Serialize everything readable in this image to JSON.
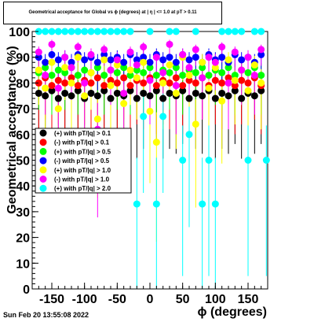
{
  "title": "Geometrical acceptance for Global vs ϕ (degrees) at | η | <= 1.0 at pT > 0.11",
  "footer": "Sun Feb 20 13:55:08 2022",
  "chart_data": {
    "type": "scatter",
    "xlabel": "ϕ (degrees)",
    "ylabel": "Geometrical acceptance (%)",
    "xlim": [
      -180,
      180
    ],
    "ylim": [
      0,
      100
    ],
    "x_ticks": [
      -150,
      -100,
      -50,
      0,
      50,
      100,
      150
    ],
    "y_ticks": [
      0,
      10,
      20,
      30,
      40,
      50,
      60,
      70,
      80,
      90,
      100
    ],
    "grid": false,
    "legend_position": "left-center",
    "series": [
      {
        "name": "(+) with pT/|q| > 0.1",
        "color": "#000000",
        "points": [
          [
            -170,
            76
          ],
          [
            -160,
            75
          ],
          [
            -150,
            77
          ],
          [
            -140,
            74
          ],
          [
            -130,
            76
          ],
          [
            -120,
            75
          ],
          [
            -110,
            77
          ],
          [
            -100,
            74
          ],
          [
            -90,
            76
          ],
          [
            -80,
            75
          ],
          [
            -70,
            77
          ],
          [
            -60,
            74
          ],
          [
            -50,
            76
          ],
          [
            -40,
            75
          ],
          [
            -30,
            77
          ],
          [
            -20,
            74
          ],
          [
            -10,
            76
          ],
          [
            0,
            75
          ],
          [
            10,
            77
          ],
          [
            20,
            74
          ],
          [
            30,
            76
          ],
          [
            40,
            75
          ],
          [
            50,
            77
          ],
          [
            60,
            74
          ],
          [
            70,
            76
          ],
          [
            80,
            75
          ],
          [
            90,
            77
          ],
          [
            100,
            74
          ],
          [
            110,
            76
          ],
          [
            120,
            75
          ],
          [
            130,
            77
          ],
          [
            140,
            74
          ],
          [
            150,
            76
          ],
          [
            160,
            75
          ],
          [
            170,
            77
          ]
        ]
      },
      {
        "name": "(-) with pT/|q| > 0.1",
        "color": "#ff0000",
        "points": [
          [
            -170,
            80
          ],
          [
            -160,
            82
          ],
          [
            -150,
            79
          ],
          [
            -140,
            81
          ],
          [
            -130,
            80
          ],
          [
            -120,
            82
          ],
          [
            -110,
            79
          ],
          [
            -100,
            81
          ],
          [
            -90,
            80
          ],
          [
            -80,
            82
          ],
          [
            -70,
            79
          ],
          [
            -60,
            81
          ],
          [
            -50,
            80
          ],
          [
            -40,
            82
          ],
          [
            -30,
            79
          ],
          [
            -20,
            81
          ],
          [
            -10,
            80
          ],
          [
            0,
            82
          ],
          [
            10,
            79
          ],
          [
            20,
            81
          ],
          [
            30,
            80
          ],
          [
            40,
            82
          ],
          [
            50,
            79
          ],
          [
            60,
            81
          ],
          [
            70,
            80
          ],
          [
            80,
            82
          ],
          [
            90,
            79
          ],
          [
            100,
            81
          ],
          [
            110,
            80
          ],
          [
            120,
            82
          ],
          [
            130,
            79
          ],
          [
            140,
            81
          ],
          [
            150,
            80
          ],
          [
            160,
            82
          ],
          [
            170,
            79
          ]
        ]
      },
      {
        "name": "(+) with pT/|q| > 0.5",
        "color": "#00ff00",
        "points": [
          [
            -170,
            84
          ],
          [
            -160,
            86
          ],
          [
            -150,
            83
          ],
          [
            -140,
            85
          ],
          [
            -130,
            84
          ],
          [
            -120,
            86
          ],
          [
            -110,
            83
          ],
          [
            -100,
            85
          ],
          [
            -90,
            84
          ],
          [
            -80,
            86
          ],
          [
            -70,
            83
          ],
          [
            -60,
            85
          ],
          [
            -50,
            84
          ],
          [
            -40,
            86
          ],
          [
            -30,
            83
          ],
          [
            -20,
            85
          ],
          [
            -10,
            84
          ],
          [
            0,
            86
          ],
          [
            10,
            83
          ],
          [
            20,
            85
          ],
          [
            30,
            84
          ],
          [
            40,
            86
          ],
          [
            50,
            83
          ],
          [
            60,
            85
          ],
          [
            70,
            84
          ],
          [
            80,
            86
          ],
          [
            90,
            83
          ],
          [
            100,
            85
          ],
          [
            110,
            84
          ],
          [
            120,
            86
          ],
          [
            130,
            83
          ],
          [
            140,
            85
          ],
          [
            150,
            84
          ],
          [
            160,
            86
          ],
          [
            170,
            83
          ]
        ]
      },
      {
        "name": "(-) with pT/|q| > 0.5",
        "color": "#0000ff",
        "points": [
          [
            -170,
            90
          ],
          [
            -160,
            88
          ],
          [
            -150,
            91
          ],
          [
            -140,
            89
          ],
          [
            -130,
            90
          ],
          [
            -120,
            88
          ],
          [
            -110,
            91
          ],
          [
            -100,
            89
          ],
          [
            -90,
            90
          ],
          [
            -80,
            88
          ],
          [
            -70,
            91
          ],
          [
            -60,
            89
          ],
          [
            -50,
            90
          ],
          [
            -40,
            88
          ],
          [
            -30,
            91
          ],
          [
            -20,
            89
          ],
          [
            -10,
            90
          ],
          [
            0,
            88
          ],
          [
            10,
            91
          ],
          [
            20,
            89
          ],
          [
            30,
            90
          ],
          [
            40,
            88
          ],
          [
            50,
            91
          ],
          [
            60,
            89
          ],
          [
            70,
            90
          ],
          [
            80,
            88
          ],
          [
            90,
            91
          ],
          [
            100,
            89
          ],
          [
            110,
            90
          ],
          [
            120,
            88
          ],
          [
            130,
            91
          ],
          [
            140,
            89
          ],
          [
            150,
            90
          ],
          [
            160,
            88
          ],
          [
            170,
            91
          ]
        ]
      },
      {
        "name": "(+) with pT/|q| > 1.0",
        "color": "#ffff00",
        "points": [
          [
            -170,
            85
          ],
          [
            -160,
            78
          ],
          [
            -150,
            88
          ],
          [
            -140,
            70
          ],
          [
            -130,
            86
          ],
          [
            -120,
            80
          ],
          [
            -110,
            90
          ],
          [
            -100,
            75
          ],
          [
            -90,
            84
          ],
          [
            -80,
            66
          ],
          [
            -70,
            89
          ],
          [
            -60,
            79
          ],
          [
            -50,
            87
          ],
          [
            -40,
            72
          ],
          [
            -30,
            85
          ],
          [
            -20,
            82
          ],
          [
            -10,
            88
          ],
          [
            0,
            69
          ],
          [
            10,
            57
          ],
          [
            20,
            80
          ],
          [
            30,
            87
          ],
          [
            40,
            76
          ],
          [
            50,
            90
          ],
          [
            60,
            83
          ],
          [
            70,
            64
          ],
          [
            80,
            88
          ],
          [
            90,
            78
          ],
          [
            100,
            86
          ],
          [
            110,
            73
          ],
          [
            120,
            89
          ],
          [
            130,
            81
          ],
          [
            140,
            85
          ],
          [
            150,
            77
          ],
          [
            160,
            87
          ],
          [
            170,
            80
          ]
        ]
      },
      {
        "name": "(-) with pT/|q| > 1.0",
        "color": "#ff00ff",
        "points": [
          [
            -170,
            92
          ],
          [
            -160,
            83
          ],
          [
            -150,
            95
          ],
          [
            -140,
            78
          ],
          [
            -130,
            90
          ],
          [
            -120,
            86
          ],
          [
            -110,
            94
          ],
          [
            -100,
            80
          ],
          [
            -90,
            91
          ],
          [
            -80,
            62
          ],
          [
            -70,
            93
          ],
          [
            -60,
            85
          ],
          [
            -50,
            89
          ],
          [
            -40,
            76
          ],
          [
            -30,
            92
          ],
          [
            -20,
            87
          ],
          [
            -10,
            94
          ],
          [
            0,
            81
          ],
          [
            10,
            90
          ],
          [
            20,
            84
          ],
          [
            30,
            95
          ],
          [
            40,
            79
          ],
          [
            50,
            91
          ],
          [
            60,
            86
          ],
          [
            70,
            93
          ],
          [
            80,
            82
          ],
          [
            90,
            90
          ],
          [
            100,
            88
          ],
          [
            110,
            94
          ],
          [
            120,
            80
          ],
          [
            130,
            92
          ],
          [
            140,
            85
          ],
          [
            150,
            90
          ],
          [
            160,
            83
          ],
          [
            170,
            93
          ]
        ]
      },
      {
        "name": "(+) with pT/|q| > 2.0",
        "color": "#00ffff",
        "points": [
          [
            -170,
            100
          ],
          [
            -160,
            100
          ],
          [
            -150,
            100
          ],
          [
            -140,
            100
          ],
          [
            -130,
            100
          ],
          [
            -120,
            100
          ],
          [
            -110,
            100
          ],
          [
            -100,
            100
          ],
          [
            -90,
            100
          ],
          [
            -80,
            100
          ],
          [
            -70,
            100
          ],
          [
            -60,
            100
          ],
          [
            -50,
            100
          ],
          [
            -40,
            100
          ],
          [
            -30,
            100
          ],
          [
            -20,
            33
          ],
          [
            -10,
            67
          ],
          [
            0,
            100
          ],
          [
            10,
            33
          ],
          [
            20,
            67
          ],
          [
            30,
            100
          ],
          [
            40,
            100
          ],
          [
            50,
            50
          ],
          [
            60,
            60
          ],
          [
            70,
            100
          ],
          [
            80,
            33
          ],
          [
            90,
            50
          ],
          [
            100,
            33
          ],
          [
            110,
            100
          ],
          [
            120,
            100
          ],
          [
            130,
            100
          ],
          [
            140,
            100
          ],
          [
            150,
            50
          ],
          [
            160,
            100
          ],
          [
            170,
            100
          ],
          [
            178,
            50
          ]
        ]
      }
    ]
  }
}
